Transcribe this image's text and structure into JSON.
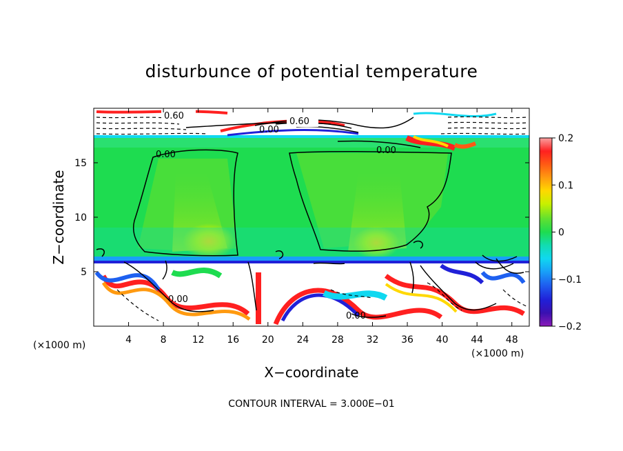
{
  "chart_data": {
    "type": "heatmap",
    "title": "disturbunce of potential temperature",
    "xlabel": "X−coordinate",
    "ylabel": "Z−coordinate",
    "x_unit": "(×1000 m)",
    "z_unit": "(×1000 m)",
    "xlim": [
      0,
      50
    ],
    "zlim": [
      0,
      20
    ],
    "x_ticks": [
      "4",
      "8",
      "12",
      "16",
      "20",
      "24",
      "28",
      "32",
      "36",
      "40",
      "44",
      "48"
    ],
    "z_ticks": [
      "5",
      "10",
      "15"
    ],
    "colorbar": {
      "range": [
        -0.2,
        0.2
      ],
      "tick_labels": [
        "0.2",
        "0.1",
        "0",
        "−0.1",
        "−0.2"
      ],
      "colors": [
        "#f9a0a0",
        "#ff2020",
        "#ff5a14",
        "#ff9a10",
        "#ffd800",
        "#c8f000",
        "#60e030",
        "#1edc50",
        "#12dcb0",
        "#10d8f0",
        "#18a0f8",
        "#1e60f0",
        "#2020d8",
        "#3a10b0",
        "#8a1ab8"
      ]
    },
    "contour_labels": [
      "0.60",
      "0.60",
      "0.00",
      "0.00",
      "0.00",
      "0.00",
      "0.00"
    ],
    "contour_interval_text": "CONTOUR INTERVAL = 3.000E−01",
    "grid": false
  }
}
